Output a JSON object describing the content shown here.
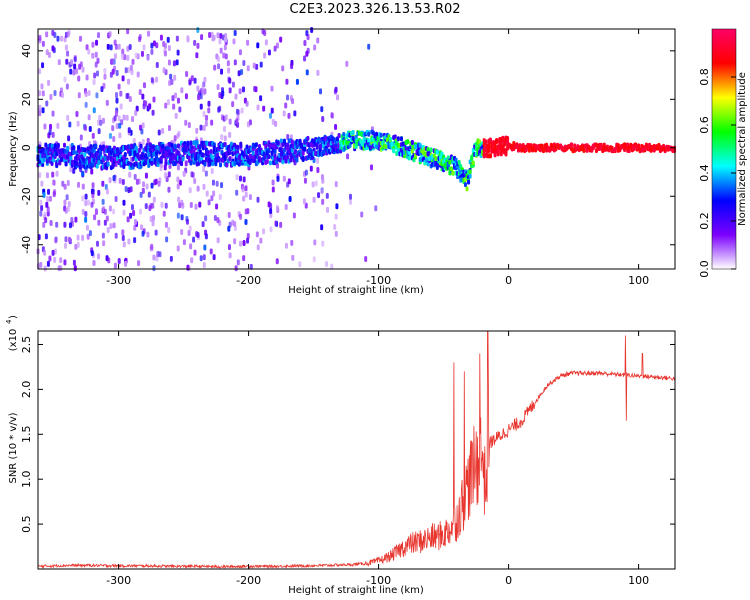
{
  "title": "C2E3.2023.326.13.53.R02",
  "chart_data": [
    {
      "type": "heatmap",
      "xlabel": "Height of straight line (km)",
      "ylabel": "Frequency (Hz)",
      "xlim": [
        -362,
        128
      ],
      "ylim": [
        -50,
        49
      ],
      "xticks": [
        -300,
        -200,
        -100,
        0,
        100
      ],
      "yticks": [
        -40,
        -20,
        0,
        20,
        40
      ],
      "xtick_labels": [
        "-300",
        "-200",
        "-100",
        "0",
        "100"
      ],
      "ytick_labels": [
        "-40",
        "-20",
        "0",
        "20",
        "40"
      ],
      "ridge": {
        "x": [
          -362,
          -300,
          -250,
          -200,
          -150,
          -120,
          -100,
          -80,
          -60,
          -40,
          -32,
          -25,
          -15,
          0,
          10,
          50,
          128
        ],
        "frequency": [
          -3,
          -4,
          -2,
          -3,
          0,
          3,
          3,
          0,
          -4,
          -8,
          -14,
          0,
          0,
          1,
          0,
          0,
          0
        ]
      },
      "colorbar": {
        "label": "Normalized spectral amplitude",
        "range": [
          0,
          1
        ],
        "ticks": [
          0.0,
          0.2,
          0.4,
          0.6,
          0.8
        ],
        "tick_labels": [
          "0.0",
          "0.2",
          "0.4",
          "0.6",
          "0.8"
        ],
        "colormap": [
          "#ffffff",
          "#7b00ff",
          "#0000ff",
          "#00ffff",
          "#00ff00",
          "#ffff00",
          "#ff0000",
          "#ff0066"
        ]
      },
      "grid": false
    },
    {
      "type": "line",
      "xlabel": "Height of straight line (km)",
      "ylabel": "SNR (10 * v/v)",
      "yscale_label": "(x10",
      "yscale_exponent": "4",
      "scale": 10000,
      "xlim": [
        -362,
        128
      ],
      "ylim": [
        0,
        26500
      ],
      "xticks": [
        -300,
        -200,
        -100,
        0,
        100
      ],
      "yticks": [
        5000,
        10000,
        15000,
        20000,
        25000
      ],
      "xtick_labels": [
        "-300",
        "-200",
        "-100",
        "0",
        "100"
      ],
      "ytick_labels": [
        "0.5",
        "1.0",
        "1.5",
        "2.0",
        "2.5"
      ],
      "color": "#e8352e",
      "series": [
        {
          "x": [
            -362,
            -340,
            -320,
            -300,
            -280,
            -260,
            -240,
            -220,
            -200,
            -180,
            -160,
            -140,
            -120,
            -110,
            -100,
            -95,
            -90,
            -85,
            -80,
            -75,
            -70,
            -65,
            -60,
            -55,
            -50,
            -45,
            -40,
            -35,
            -30,
            -25,
            -20,
            -18,
            -15,
            -10,
            -5,
            0,
            5,
            10,
            15,
            20,
            25,
            30,
            35,
            40,
            45,
            50,
            60,
            70,
            80,
            90,
            100,
            110,
            120,
            128
          ],
          "y": [
            300,
            400,
            400,
            350,
            350,
            300,
            300,
            250,
            300,
            300,
            350,
            400,
            500,
            600,
            900,
            1200,
            1500,
            2000,
            2500,
            2800,
            3000,
            3200,
            3500,
            3600,
            3800,
            4500,
            5500,
            7500,
            10000,
            11500,
            13000,
            9000,
            14000,
            14500,
            15000,
            15500,
            16000,
            16500,
            17500,
            18500,
            19500,
            20500,
            21000,
            21500,
            21700,
            21800,
            21800,
            21800,
            21700,
            21600,
            21500,
            21400,
            21300,
            21200
          ],
          "spikes": [
            {
              "x": -42,
              "y": 23000
            },
            {
              "x": -34,
              "y": 22000
            },
            {
              "x": -22,
              "y": 24000
            },
            {
              "x": -16,
              "y": 26500
            },
            {
              "x": 90,
              "y": 26000
            },
            {
              "x": 90.5,
              "y": 16500
            },
            {
              "x": 103,
              "y": 24000
            }
          ]
        }
      ]
    }
  ]
}
